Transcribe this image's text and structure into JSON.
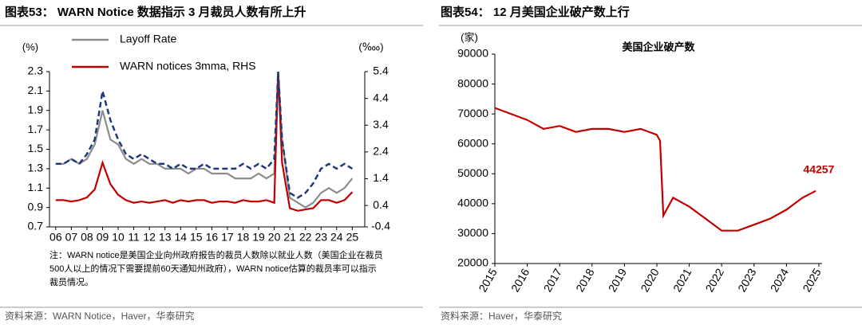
{
  "chart_data": [
    {
      "type": "line",
      "title": "图表53： WARN Notice 数据指示 3 月裁员人数有所上升",
      "y_label": "(%)",
      "y2_label": "(‱)",
      "x": [
        2006,
        2006.5,
        2007,
        2007.5,
        2008,
        2008.5,
        2009,
        2009.5,
        2010,
        2010.5,
        2011,
        2011.5,
        2012,
        2012.5,
        2013,
        2013.5,
        2014,
        2014.5,
        2015,
        2015.5,
        2016,
        2016.5,
        2017,
        2017.5,
        2018,
        2018.5,
        2019,
        2019.5,
        2020,
        2020.25,
        2020.5,
        2021,
        2021.5,
        2022,
        2022.5,
        2023,
        2023.5,
        2024,
        2024.5,
        2025
      ],
      "series": [
        {
          "name": "Layoff Rate",
          "color": "#8c8c8c",
          "values": [
            1.35,
            1.35,
            1.4,
            1.35,
            1.4,
            1.55,
            1.9,
            1.6,
            1.55,
            1.4,
            1.35,
            1.4,
            1.35,
            1.35,
            1.3,
            1.3,
            1.3,
            1.25,
            1.3,
            1.3,
            1.25,
            1.25,
            1.25,
            1.2,
            1.2,
            1.2,
            1.25,
            1.2,
            1.25,
            2.3,
            1.6,
            1.0,
            0.95,
            0.9,
            0.95,
            1.05,
            1.1,
            1.05,
            1.1,
            1.2
          ]
        },
        {
          "name": "WARN notices 3mma, RHS",
          "color": "#c00000",
          "axis": "y2",
          "values": [
            0.6,
            0.6,
            0.55,
            0.6,
            0.7,
            1.0,
            2.0,
            1.2,
            0.8,
            0.6,
            0.5,
            0.55,
            0.5,
            0.55,
            0.6,
            0.5,
            0.6,
            0.55,
            0.6,
            0.6,
            0.5,
            0.55,
            0.55,
            0.5,
            0.6,
            0.55,
            0.55,
            0.6,
            0.5,
            5.4,
            2.0,
            0.3,
            0.2,
            0.25,
            0.3,
            0.6,
            0.6,
            0.5,
            0.6,
            0.9
          ]
        },
        {
          "color": "#1f3a7a",
          "dashed": true,
          "values": [
            1.35,
            1.35,
            1.4,
            1.35,
            1.45,
            1.6,
            2.1,
            1.8,
            1.6,
            1.45,
            1.4,
            1.45,
            1.4,
            1.35,
            1.35,
            1.3,
            1.35,
            1.3,
            1.3,
            1.35,
            1.3,
            1.3,
            1.3,
            1.3,
            1.35,
            1.3,
            1.35,
            1.3,
            1.4,
            2.3,
            1.6,
            1.05,
            1.0,
            1.05,
            1.15,
            1.3,
            1.35,
            1.3,
            1.35,
            1.3
          ]
        }
      ],
      "xlim": [
        2005.6,
        2025.8
      ],
      "xticks": [
        {
          "value": 2006,
          "label": "06"
        },
        {
          "value": 2007,
          "label": "07"
        },
        {
          "value": 2008,
          "label": "08"
        },
        {
          "value": 2009,
          "label": "09"
        },
        {
          "value": 2010,
          "label": "10"
        },
        {
          "value": 2011,
          "label": "11"
        },
        {
          "value": 2012,
          "label": "12"
        },
        {
          "value": 2013,
          "label": "13"
        },
        {
          "value": 2014,
          "label": "14"
        },
        {
          "value": 2015,
          "label": "15"
        },
        {
          "value": 2016,
          "label": "16"
        },
        {
          "value": 2017,
          "label": "17"
        },
        {
          "value": 2018,
          "label": "18"
        },
        {
          "value": 2019,
          "label": "19"
        },
        {
          "value": 2020,
          "label": "20"
        },
        {
          "value": 2021,
          "label": "21"
        },
        {
          "value": 2022,
          "label": "22"
        },
        {
          "value": 2023,
          "label": "23"
        },
        {
          "value": 2024,
          "label": "24"
        },
        {
          "value": 2025,
          "label": "25"
        }
      ],
      "ylim": [
        0.7,
        2.3
      ],
      "yticks": [
        0.7,
        0.9,
        1.1,
        1.3,
        1.5,
        1.7,
        1.9,
        2.1,
        2.3
      ],
      "y2lim": [
        -0.4,
        5.4
      ],
      "y2ticks": [
        -0.4,
        0.4,
        1.4,
        2.4,
        3.4,
        4.4,
        5.4
      ],
      "note": "注：WARN notice是美国企业向州政府报告的裁员人数除以就业人数（美国企业在裁员500人以上的情况下需要提前60天通知州政府），WARN notice估算的裁员率可以指示裁员情况。",
      "source": "资料来源：WARN Notice，Haver，华泰研究"
    },
    {
      "type": "line",
      "title": "图表54： 12 月美国企业破产数上行",
      "subtitle": "美国企业破产数",
      "y_label": "(家)",
      "x": [
        2015,
        2015.5,
        2016,
        2016.5,
        2017,
        2017.5,
        2018,
        2018.5,
        2019,
        2019.5,
        2020,
        2020.1,
        2020.2,
        2020.5,
        2021,
        2021.5,
        2022,
        2022.5,
        2023,
        2023.5,
        2024,
        2024.5,
        2024.9
      ],
      "series": [
        {
          "color": "#c00000",
          "values": [
            72000,
            70000,
            68000,
            65000,
            66000,
            64000,
            65000,
            65000,
            64000,
            65000,
            63000,
            61000,
            36000,
            42000,
            39000,
            35000,
            31000,
            31000,
            33000,
            35000,
            38000,
            42000,
            44257
          ]
        }
      ],
      "xlim": [
        2015,
        2025.1
      ],
      "xticks": [
        2015,
        2016,
        2017,
        2018,
        2019,
        2020,
        2021,
        2022,
        2023,
        2024,
        2025
      ],
      "ylim": [
        20000,
        90000
      ],
      "yticks": [
        20000,
        30000,
        40000,
        50000,
        60000,
        70000,
        80000,
        90000
      ],
      "source": "资料来源：Haver，华泰研究"
    }
  ]
}
